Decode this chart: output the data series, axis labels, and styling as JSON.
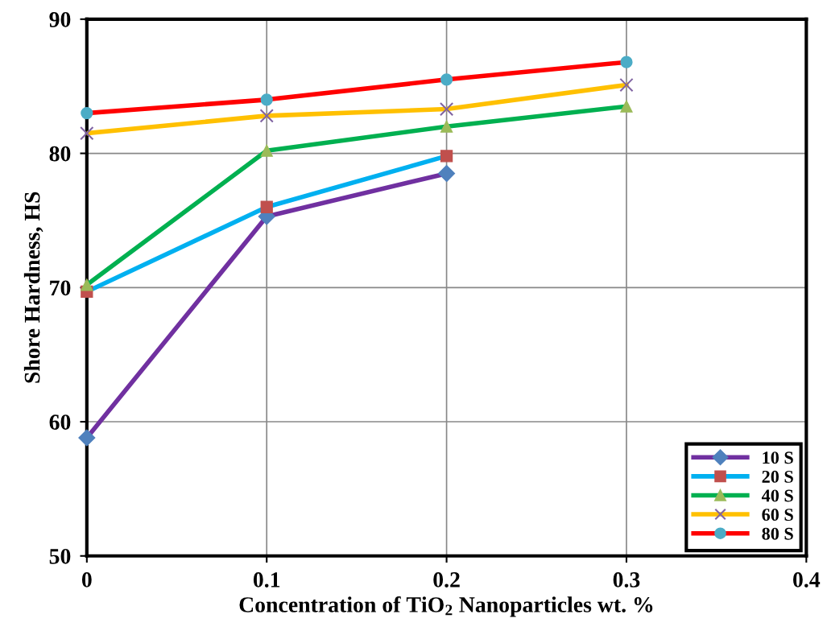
{
  "chart_data": {
    "type": "line",
    "xlabel": "Concentration of TiO$_{2}$ Nanoparticles wt. %",
    "ylabel": "Shore Hardness, HS",
    "series": [
      {
        "name": "10 S",
        "color": "#7030a0",
        "colors": [
          "#4f81bd",
          "#4f81bd",
          "#4f81bd"
        ],
        "marker": "diamond",
        "x": [
          0,
          0.1,
          0.2
        ],
        "values": [
          58.8,
          75.3,
          78.5
        ]
      },
      {
        "name": "20 S",
        "color": "#00b0f0",
        "colors": [
          "#c0504d",
          "#c0504d",
          "#c0504d"
        ],
        "marker": "square",
        "x": [
          0,
          0.1,
          0.2
        ],
        "values": [
          69.7,
          76.0,
          79.8
        ]
      },
      {
        "name": "40 S",
        "color": "#00b050",
        "colors": [
          "#9bbb59",
          "#9bbb59",
          "#9bbb59",
          "#9bbb59"
        ],
        "marker": "triangle",
        "x": [
          0,
          0.1,
          0.2,
          0.3
        ],
        "values": [
          70.2,
          80.2,
          82.0,
          83.5
        ]
      },
      {
        "name": "60 S",
        "color": "#ffc000",
        "colors": [
          "#8064a2",
          "#8064a2",
          "#8064a2",
          "#8064a2"
        ],
        "marker": "cross",
        "x": [
          0,
          0.1,
          0.2,
          0.3
        ],
        "values": [
          81.5,
          82.8,
          83.3,
          85.1
        ]
      },
      {
        "name": "80 S",
        "color": "#ff0000",
        "colors": [
          "#4bacc6",
          "#4bacc6",
          "#4bacc6",
          "#4bacc6"
        ],
        "marker": "circle",
        "x": [
          0,
          0.1,
          0.2,
          0.3
        ],
        "values": [
          83.0,
          84.0,
          85.5,
          86.8
        ]
      }
    ],
    "xlim": [
      0,
      0.4
    ],
    "xticks": [
      0,
      0.1,
      0.2,
      0.3,
      0.4
    ],
    "ylim": [
      50,
      90
    ],
    "yticks": [
      50,
      60,
      70,
      80,
      90
    ],
    "grid": true,
    "legend": "bottom right",
    "line_style": "solid"
  }
}
